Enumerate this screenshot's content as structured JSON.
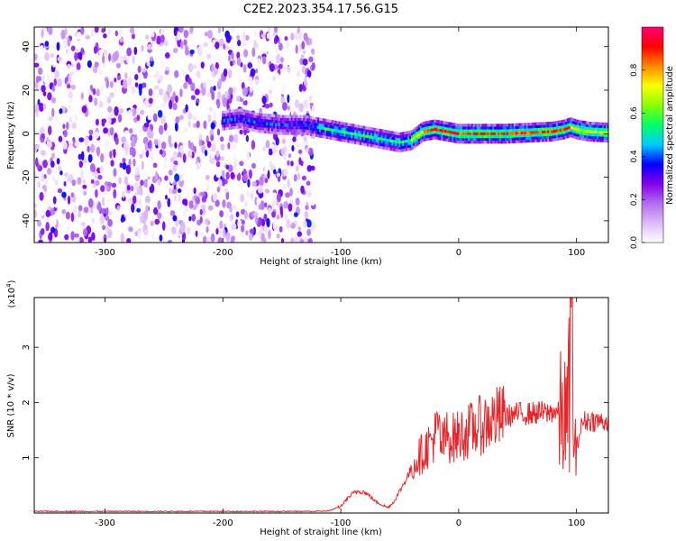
{
  "title": "C2E2.2023.354.17.56.G15",
  "colors": {
    "snr_line": "#e8262a",
    "axis": "#000000"
  },
  "chart_data": [
    {
      "type": "heatmap",
      "xlabel": "Height of straight line (km)",
      "ylabel": "Frequency (Hz)",
      "xlim": [
        -360,
        127
      ],
      "ylim": [
        -50,
        49
      ],
      "xticks": [
        -300,
        -200,
        -100,
        0,
        100
      ],
      "yticks": [
        -40,
        -20,
        0,
        20,
        40
      ],
      "grid": false,
      "noise_region_x": [
        -360,
        -123
      ],
      "ridge": {
        "x": [
          -200,
          -185,
          -170,
          -150,
          -130,
          -120,
          -110,
          -100,
          -90,
          -80,
          -70,
          -60,
          -50,
          -40,
          -30,
          -20,
          -10,
          0,
          20,
          40,
          60,
          80,
          90,
          95,
          100,
          110,
          127
        ],
        "y": [
          6,
          7,
          5,
          4,
          4,
          3,
          2,
          1,
          0,
          -1,
          -2,
          -3,
          -4,
          -3,
          1,
          2,
          1,
          0,
          0,
          0,
          0.5,
          1,
          2,
          3,
          2,
          1,
          0.5
        ]
      },
      "colorbar": {
        "label": "Normalized spectral amplitude",
        "range": [
          0,
          1
        ],
        "ticks": [
          0.0,
          0.2,
          0.4,
          0.6,
          0.8
        ],
        "colors": [
          "#ffffff",
          "#ddb9f6",
          "#b06cf0",
          "#8400e8",
          "#0000ff",
          "#00ccff",
          "#00ff66",
          "#88ff00",
          "#ffff00",
          "#ff8800",
          "#ff0000",
          "#ff0077"
        ]
      }
    },
    {
      "type": "line",
      "xlabel": "Height of straight line (km)",
      "ylabel": "SNR (10 * v/v)",
      "y_multiplier_label": "(x10",
      "y_multiplier_exp": "4",
      "y_multiplier_close": ")",
      "xlim": [
        -360,
        127
      ],
      "ylim": [
        0,
        3.9
      ],
      "xticks": [
        -300,
        -200,
        -100,
        0,
        100
      ],
      "yticks": [
        1,
        2,
        3
      ],
      "grid": false,
      "series": [
        {
          "x": [
            -360,
            -300,
            -200,
            -120,
            -110,
            -100,
            -95,
            -90,
            -85,
            -80,
            -75,
            -70,
            -65,
            -60,
            -55,
            -50,
            -45,
            -40,
            -35,
            -30,
            -25,
            -20,
            -17,
            -15,
            -10,
            -5,
            0,
            10,
            20,
            30,
            40,
            50,
            60,
            70,
            75,
            80,
            85,
            90,
            92,
            94,
            96,
            98,
            100,
            105,
            110,
            127
          ],
          "y": [
            0.03,
            0.03,
            0.03,
            0.03,
            0.04,
            0.12,
            0.25,
            0.35,
            0.4,
            0.38,
            0.3,
            0.2,
            0.15,
            0.1,
            0.2,
            0.4,
            0.6,
            0.8,
            1.0,
            1.1,
            1.25,
            1.4,
            1.55,
            1.2,
            1.4,
            1.35,
            1.4,
            1.5,
            1.6,
            1.7,
            1.75,
            1.8,
            1.8,
            1.82,
            1.8,
            1.85,
            1.8,
            1.75,
            1.6,
            2.4,
            3.9,
            1.0,
            1.2,
            1.65,
            1.68,
            1.65
          ]
        }
      ]
    }
  ]
}
